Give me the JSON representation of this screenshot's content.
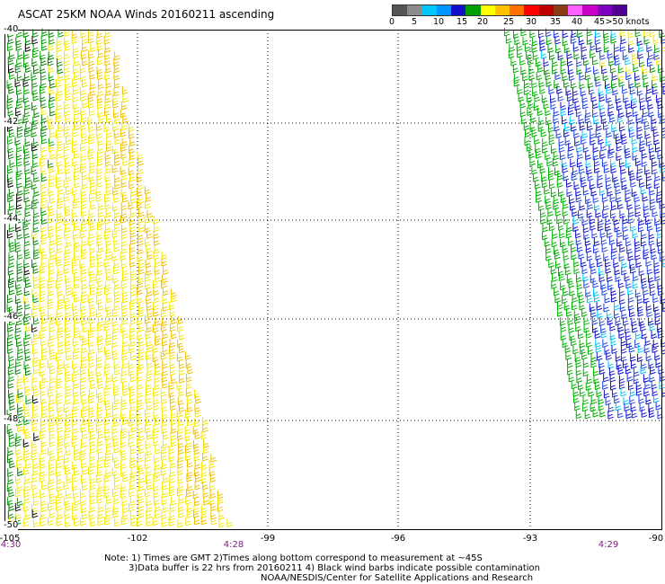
{
  "title": "ASCAT 25KM NOAA Winds 20160211 ascending",
  "legend": {
    "labels": [
      "0",
      "5",
      "10",
      "15",
      "20",
      "25",
      "30",
      "35",
      "40",
      "45",
      ">50 knots"
    ],
    "colors": [
      "#555555",
      "#8c8c8c",
      "#00c8ff",
      "#0096ff",
      "#1010c8",
      "#00a000",
      "#ffff00",
      "#ffc000",
      "#ff7000",
      "#ff0000",
      "#c00000",
      "#8c3c14",
      "#ff60ff",
      "#c800c8",
      "#8000c0",
      "#500090"
    ]
  },
  "map": {
    "lat_labels": [
      "-40",
      "-42",
      "-44",
      "-46",
      "-48",
      "-50"
    ],
    "lon_labels": [
      "-105",
      "-102",
      "-99",
      "-96",
      "-93",
      "-90"
    ],
    "time_labels": [
      "4:30",
      "4:28",
      "4:29"
    ]
  },
  "notes": [
    "Note: 1) Times are GMT 2)Times along bottom correspond to measurement at ~45S",
    "3)Data buffer is 22 hrs from 20160211 4) Black wind barbs indicate possible contamination",
    "NOAA/NESDIS/Center for Satellite Applications and Research"
  ]
}
